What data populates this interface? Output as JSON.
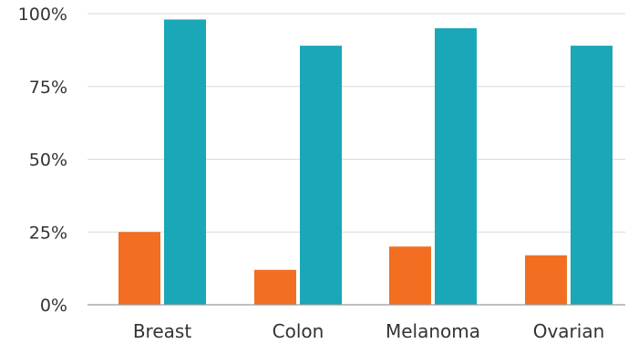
{
  "chart_data": {
    "type": "bar",
    "categories": [
      "Breast",
      "Colon",
      "Melanoma",
      "Ovarian"
    ],
    "series": [
      {
        "values": [
          25,
          12,
          20,
          17
        ],
        "color": "#f26f21"
      },
      {
        "values": [
          98,
          89,
          95,
          89
        ],
        "color": "#1aa7b8"
      }
    ],
    "ylim": [
      0,
      100
    ],
    "yticks": [
      0,
      25,
      50,
      75,
      100
    ],
    "ytick_labels": [
      "0%",
      "25%",
      "50%",
      "75%",
      "100%"
    ],
    "grid": true,
    "legend": "none"
  }
}
